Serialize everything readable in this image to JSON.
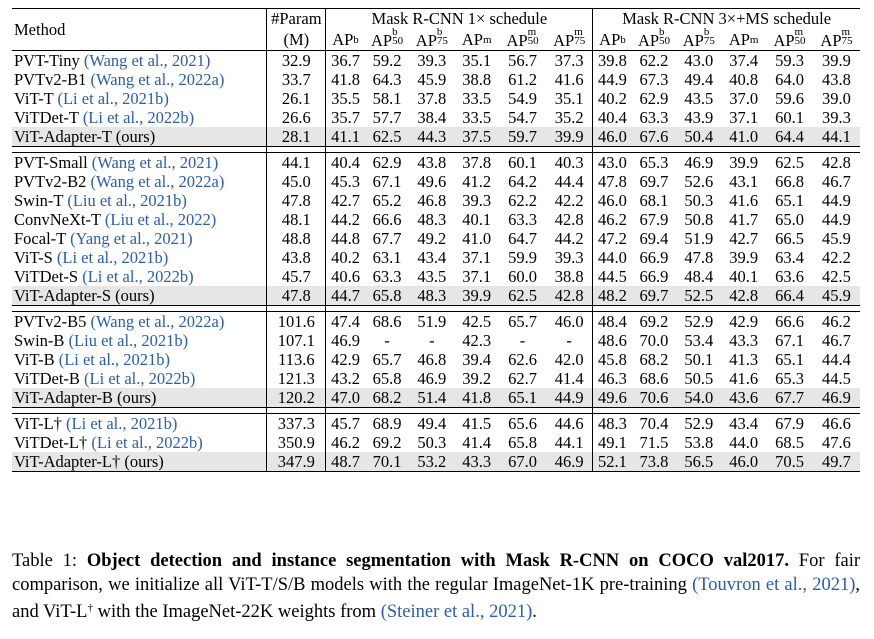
{
  "table": {
    "header": {
      "method": "Method",
      "param_line1": "#Param",
      "param_line2": "(M)",
      "group1": "Mask R-CNN 1× schedule",
      "group2": "Mask R-CNN 3×+MS schedule",
      "metrics": [
        {
          "base": "AP",
          "sup": "b",
          "sub": ""
        },
        {
          "base": "AP",
          "sup": "b",
          "sub": "50"
        },
        {
          "base": "AP",
          "sup": "b",
          "sub": "75"
        },
        {
          "base": "AP",
          "sup": "m",
          "sub": ""
        },
        {
          "base": "AP",
          "sup": "m",
          "sub": "50"
        },
        {
          "base": "AP",
          "sup": "m",
          "sub": "75"
        }
      ]
    },
    "groups": [
      {
        "rows": [
          {
            "name": "PVT-Tiny",
            "cite": "(Wang et al., 2021)",
            "param": "32.9",
            "v1": [
              "36.7",
              "59.2",
              "39.3",
              "35.1",
              "56.7",
              "37.3"
            ],
            "v3": [
              "39.8",
              "62.2",
              "43.0",
              "37.4",
              "59.3",
              "39.9"
            ],
            "hl": false
          },
          {
            "name": "PVTv2-B1",
            "cite": "(Wang et al., 2022a)",
            "param": "33.7",
            "v1": [
              "41.8",
              "64.3",
              "45.9",
              "38.8",
              "61.2",
              "41.6"
            ],
            "v3": [
              "44.9",
              "67.3",
              "49.4",
              "40.8",
              "64.0",
              "43.8"
            ],
            "hl": false
          },
          {
            "name": "ViT-T",
            "cite": "(Li et al., 2021b)",
            "param": "26.1",
            "v1": [
              "35.5",
              "58.1",
              "37.8",
              "33.5",
              "54.9",
              "35.1"
            ],
            "v3": [
              "40.2",
              "62.9",
              "43.5",
              "37.0",
              "59.6",
              "39.0"
            ],
            "hl": false
          },
          {
            "name": "ViTDet-T",
            "cite": "(Li et al., 2022b)",
            "param": "26.6",
            "v1": [
              "35.7",
              "57.7",
              "38.4",
              "33.5",
              "54.7",
              "35.2"
            ],
            "v3": [
              "40.4",
              "63.3",
              "43.9",
              "37.1",
              "60.1",
              "39.3"
            ],
            "hl": false
          },
          {
            "name": "ViT-Adapter-T (ours)",
            "cite": "",
            "param": "28.1",
            "v1": [
              "41.1",
              "62.5",
              "44.3",
              "37.5",
              "59.7",
              "39.9"
            ],
            "v3": [
              "46.0",
              "67.6",
              "50.4",
              "41.0",
              "64.4",
              "44.1"
            ],
            "hl": true
          }
        ]
      },
      {
        "rows": [
          {
            "name": "PVT-Small",
            "cite": "(Wang et al., 2021)",
            "param": "44.1",
            "v1": [
              "40.4",
              "62.9",
              "43.8",
              "37.8",
              "60.1",
              "40.3"
            ],
            "v3": [
              "43.0",
              "65.3",
              "46.9",
              "39.9",
              "62.5",
              "42.8"
            ],
            "hl": false
          },
          {
            "name": "PVTv2-B2",
            "cite": "(Wang et al., 2022a)",
            "param": "45.0",
            "v1": [
              "45.3",
              "67.1",
              "49.6",
              "41.2",
              "64.2",
              "44.4"
            ],
            "v3": [
              "47.8",
              "69.7",
              "52.6",
              "43.1",
              "66.8",
              "46.7"
            ],
            "hl": false
          },
          {
            "name": "Swin-T",
            "cite": "(Liu et al., 2021b)",
            "param": "47.8",
            "v1": [
              "42.7",
              "65.2",
              "46.8",
              "39.3",
              "62.2",
              "42.2"
            ],
            "v3": [
              "46.0",
              "68.1",
              "50.3",
              "41.6",
              "65.1",
              "44.9"
            ],
            "hl": false
          },
          {
            "name": "ConvNeXt-T",
            "cite": "(Liu et al., 2022)",
            "param": "48.1",
            "v1": [
              "44.2",
              "66.6",
              "48.3",
              "40.1",
              "63.3",
              "42.8"
            ],
            "v3": [
              "46.2",
              "67.9",
              "50.8",
              "41.7",
              "65.0",
              "44.9"
            ],
            "hl": false
          },
          {
            "name": "Focal-T",
            "cite": "(Yang et al., 2021)",
            "param": "48.8",
            "v1": [
              "44.8",
              "67.7",
              "49.2",
              "41.0",
              "64.7",
              "44.2"
            ],
            "v3": [
              "47.2",
              "69.4",
              "51.9",
              "42.7",
              "66.5",
              "45.9"
            ],
            "hl": false
          },
          {
            "name": "ViT-S",
            "cite": "(Li et al., 2021b)",
            "param": "43.8",
            "v1": [
              "40.2",
              "63.1",
              "43.4",
              "37.1",
              "59.9",
              "39.3"
            ],
            "v3": [
              "44.0",
              "66.9",
              "47.8",
              "39.9",
              "63.4",
              "42.2"
            ],
            "hl": false
          },
          {
            "name": "ViTDet-S",
            "cite": "(Li et al., 2022b)",
            "param": "45.7",
            "v1": [
              "40.6",
              "63.3",
              "43.5",
              "37.1",
              "60.0",
              "38.8"
            ],
            "v3": [
              "44.5",
              "66.9",
              "48.4",
              "40.1",
              "63.6",
              "42.5"
            ],
            "hl": false
          },
          {
            "name": "ViT-Adapter-S (ours)",
            "cite": "",
            "param": "47.8",
            "v1": [
              "44.7",
              "65.8",
              "48.3",
              "39.9",
              "62.5",
              "42.8"
            ],
            "v3": [
              "48.2",
              "69.7",
              "52.5",
              "42.8",
              "66.4",
              "45.9"
            ],
            "hl": true
          }
        ]
      },
      {
        "rows": [
          {
            "name": "PVTv2-B5",
            "cite": "(Wang et al., 2022a)",
            "param": "101.6",
            "v1": [
              "47.4",
              "68.6",
              "51.9",
              "42.5",
              "65.7",
              "46.0"
            ],
            "v3": [
              "48.4",
              "69.2",
              "52.9",
              "42.9",
              "66.6",
              "46.2"
            ],
            "hl": false
          },
          {
            "name": "Swin-B",
            "cite": "(Liu et al., 2021b)",
            "param": "107.1",
            "v1": [
              "46.9",
              "-",
              "-",
              "42.3",
              "-",
              "-"
            ],
            "v3": [
              "48.6",
              "70.0",
              "53.4",
              "43.3",
              "67.1",
              "46.7"
            ],
            "hl": false
          },
          {
            "name": "ViT-B",
            "cite": "(Li et al., 2021b)",
            "param": "113.6",
            "v1": [
              "42.9",
              "65.7",
              "46.8",
              "39.4",
              "62.6",
              "42.0"
            ],
            "v3": [
              "45.8",
              "68.2",
              "50.1",
              "41.3",
              "65.1",
              "44.4"
            ],
            "hl": false
          },
          {
            "name": "ViTDet-B",
            "cite": "(Li et al., 2022b)",
            "param": "121.3",
            "v1": [
              "43.2",
              "65.8",
              "46.9",
              "39.2",
              "62.7",
              "41.4"
            ],
            "v3": [
              "46.3",
              "68.6",
              "50.5",
              "41.6",
              "65.3",
              "44.5"
            ],
            "hl": false
          },
          {
            "name": "ViT-Adapter-B (ours)",
            "cite": "",
            "param": "120.2",
            "v1": [
              "47.0",
              "68.2",
              "51.4",
              "41.8",
              "65.1",
              "44.9"
            ],
            "v3": [
              "49.6",
              "70.6",
              "54.0",
              "43.6",
              "67.7",
              "46.9"
            ],
            "hl": true
          }
        ]
      },
      {
        "rows": [
          {
            "name": "ViT-L†",
            "cite": "(Li et al., 2021b)",
            "param": "337.3",
            "v1": [
              "45.7",
              "68.9",
              "49.4",
              "41.5",
              "65.6",
              "44.6"
            ],
            "v3": [
              "48.3",
              "70.4",
              "52.9",
              "43.4",
              "67.9",
              "46.6"
            ],
            "hl": false
          },
          {
            "name": "ViTDet-L†",
            "cite": "(Li et al., 2022b)",
            "param": "350.9",
            "v1": [
              "46.2",
              "69.2",
              "50.3",
              "41.4",
              "65.8",
              "44.1"
            ],
            "v3": [
              "49.1",
              "71.5",
              "53.8",
              "44.0",
              "68.5",
              "47.6"
            ],
            "hl": false
          },
          {
            "name": "ViT-Adapter-L† (ours)",
            "cite": "",
            "param": "347.9",
            "v1": [
              "48.7",
              "70.1",
              "53.2",
              "43.3",
              "67.0",
              "46.9"
            ],
            "v3": [
              "52.1",
              "73.8",
              "56.5",
              "46.0",
              "70.5",
              "49.7"
            ],
            "hl": true
          }
        ]
      }
    ]
  },
  "caption": {
    "label": "Table 1:",
    "bold": "Object detection and instance segmentation with Mask R-CNN on COCO val2017.",
    "text1": " For fair comparison, we initialize all ViT-T/S/B models with the regular ImageNet-1K pre-training ",
    "cite1": "(Touvron et al., 2021)",
    "text2": ", and ViT-L",
    "dagger": "†",
    "text3": " with the ImageNet-22K weights from ",
    "cite2": "(Steiner et al., 2021)",
    "text4": "."
  }
}
